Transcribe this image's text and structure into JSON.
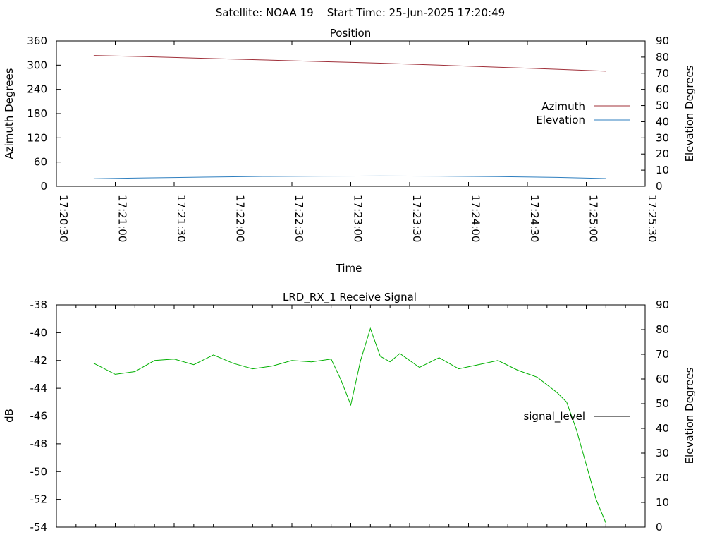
{
  "header": {
    "title": "Satellite: NOAA 19    Start Time: 25-Jun-2025 17:20:49"
  },
  "colors": {
    "azimuth": "#a0303a",
    "elevation": "#2f7fbf",
    "signal": "#00b000",
    "legend_signal": "#000000"
  },
  "chart_data": [
    {
      "type": "line",
      "title": "Position",
      "xlabel": "Time",
      "ylabel": "Azimuth Degrees",
      "y2label": "Elevation Degrees",
      "xlim": [
        "17:20:30",
        "17:25:30"
      ],
      "ylim": [
        0,
        360
      ],
      "y2lim": [
        0,
        90
      ],
      "x_ticks": [
        "17:20:30",
        "17:21:00",
        "17:21:30",
        "17:22:00",
        "17:22:30",
        "17:23:00",
        "17:23:30",
        "17:24:00",
        "17:24:30",
        "17:25:00",
        "17:25:30"
      ],
      "y_ticks": [
        "0",
        "60",
        "120",
        "180",
        "240",
        "300",
        "360"
      ],
      "y2_ticks": [
        "0",
        "10",
        "20",
        "30",
        "40",
        "50",
        "60",
        "70",
        "80",
        "90"
      ],
      "legend_position": "right",
      "series": [
        {
          "name": "Azimuth",
          "axis": "left",
          "x": [
            "17:20:49",
            "17:21:15",
            "17:21:45",
            "17:22:15",
            "17:22:45",
            "17:23:15",
            "17:23:45",
            "17:24:15",
            "17:24:45",
            "17:25:10"
          ],
          "y": [
            324,
            321,
            317,
            313,
            309,
            305,
            300,
            295,
            290,
            285
          ]
        },
        {
          "name": "Elevation",
          "axis": "right",
          "x": [
            "17:20:49",
            "17:21:15",
            "17:21:45",
            "17:22:15",
            "17:22:45",
            "17:23:15",
            "17:23:45",
            "17:24:15",
            "17:24:45",
            "17:25:10"
          ],
          "y": [
            4.7,
            5.2,
            5.7,
            6.1,
            6.3,
            6.4,
            6.3,
            6.0,
            5.5,
            4.8
          ]
        }
      ]
    },
    {
      "type": "line",
      "title": "LRD_RX_1 Receive Signal",
      "xlabel": "",
      "ylabel": "dB",
      "y2label": "Elevation Degrees",
      "xlim": [
        "17:20:30",
        "17:25:30"
      ],
      "ylim": [
        -54,
        -38
      ],
      "y2lim": [
        0,
        90
      ],
      "y_ticks": [
        "-38",
        "-40",
        "-42",
        "-44",
        "-46",
        "-48",
        "-50",
        "-52",
        "-54"
      ],
      "y2_ticks": [
        "0",
        "10",
        "20",
        "30",
        "40",
        "50",
        "60",
        "70",
        "80",
        "90"
      ],
      "legend_position": "right",
      "series": [
        {
          "name": "signal_level",
          "axis": "left",
          "x": [
            "17:20:49",
            "17:21:00",
            "17:21:10",
            "17:21:20",
            "17:21:30",
            "17:21:40",
            "17:21:50",
            "17:22:00",
            "17:22:10",
            "17:22:20",
            "17:22:30",
            "17:22:40",
            "17:22:50",
            "17:22:55",
            "17:23:00",
            "17:23:05",
            "17:23:10",
            "17:23:15",
            "17:23:20",
            "17:23:25",
            "17:23:35",
            "17:23:45",
            "17:23:55",
            "17:24:05",
            "17:24:15",
            "17:24:25",
            "17:24:35",
            "17:24:45",
            "17:24:50",
            "17:24:55",
            "17:25:00",
            "17:25:05",
            "17:25:10"
          ],
          "y": [
            -42.2,
            -43.0,
            -42.8,
            -42.0,
            -41.9,
            -42.3,
            -41.6,
            -42.2,
            -42.6,
            -42.4,
            -42.0,
            -42.1,
            -41.9,
            -43.4,
            -45.2,
            -42.0,
            -39.7,
            -41.7,
            -42.1,
            -41.5,
            -42.5,
            -41.8,
            -42.6,
            -42.3,
            -42.0,
            -42.7,
            -43.2,
            -44.3,
            -45.0,
            -47.0,
            -49.5,
            -52.0,
            -53.7
          ]
        }
      ]
    }
  ]
}
